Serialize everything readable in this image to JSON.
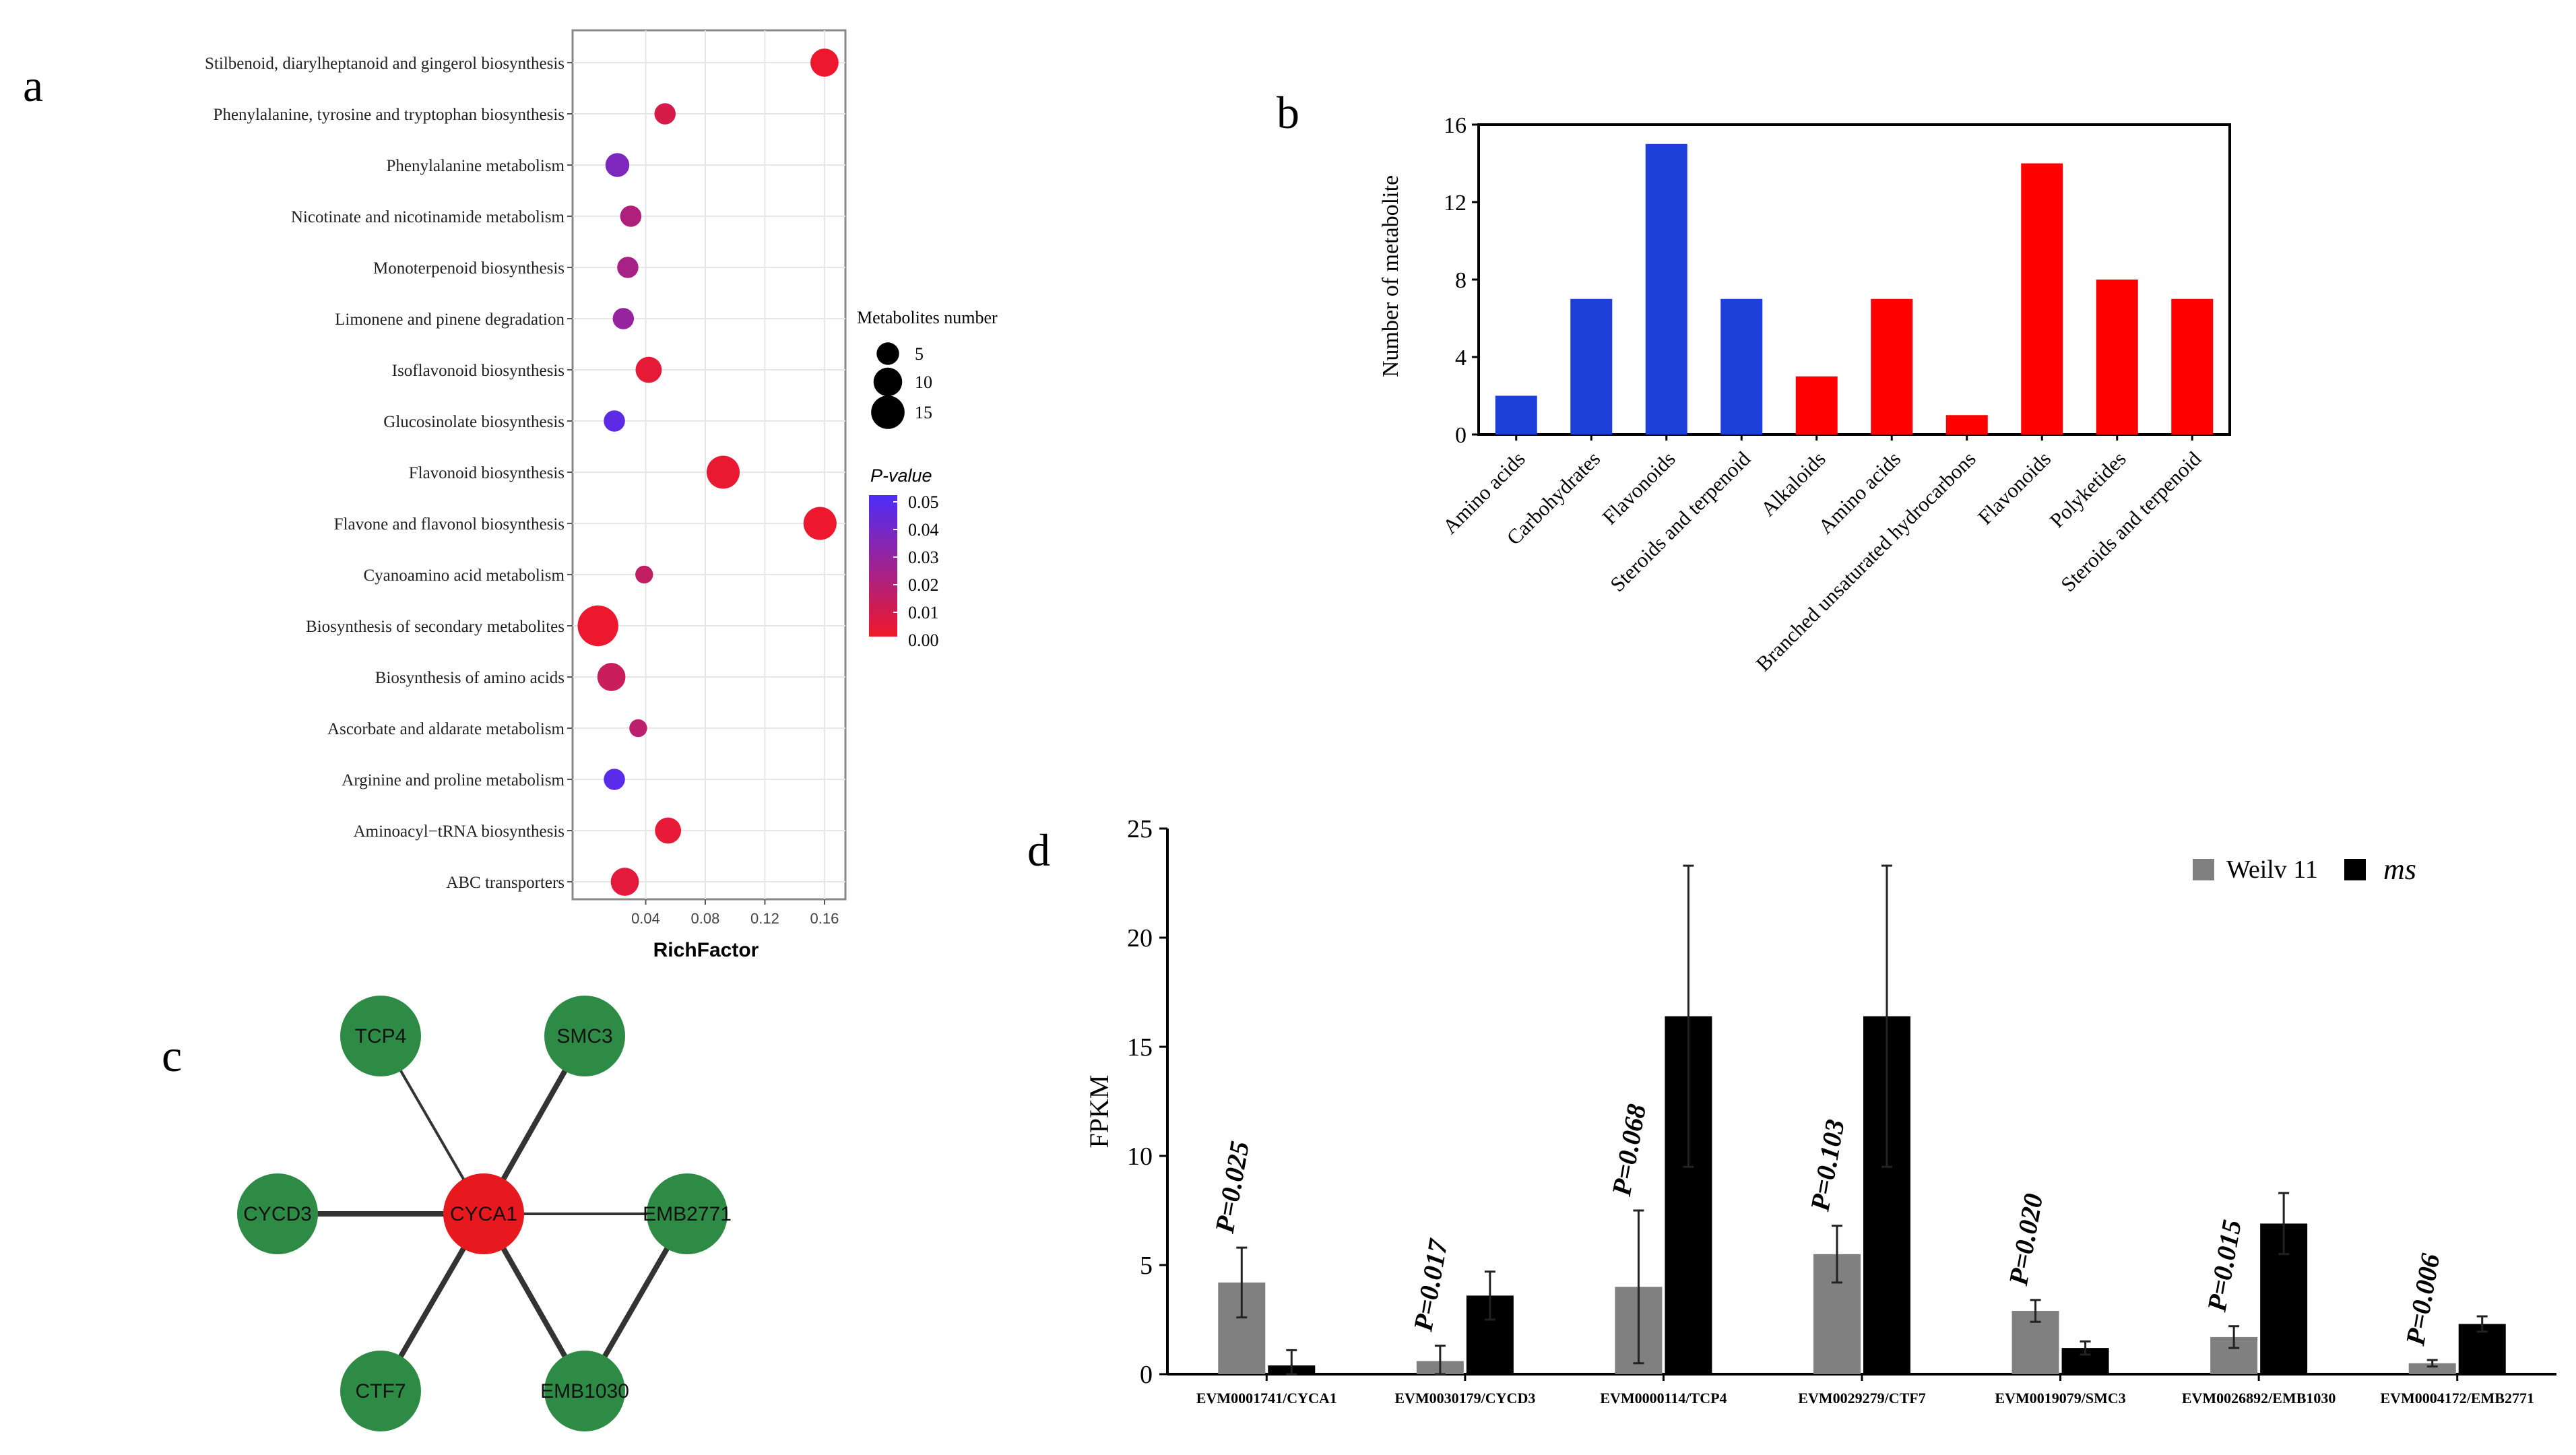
{
  "panels": {
    "a": "a",
    "b": "b",
    "c": "c",
    "d": "d"
  },
  "chart_data": [
    {
      "id": "a",
      "type": "scatter",
      "xlabel": "RichFactor",
      "xticks": [
        0.04,
        0.08,
        0.12,
        0.16
      ],
      "xticks_labels": [
        "0.04",
        "0.08",
        "0.12",
        "0.16"
      ],
      "xlim": [
        0.0,
        0.165
      ],
      "grid": true,
      "categories": [
        "Stilbenoid, diarylheptanoid and gingerol biosynthesis",
        "Phenylalanine, tyrosine and tryptophan biosynthesis",
        "Phenylalanine metabolism",
        "Nicotinate and nicotinamide metabolism",
        "Monoterpenoid biosynthesis",
        "Limonene and pinene degradation",
        "Isoflavonoid biosynthesis",
        "Glucosinolate biosynthesis",
        "Flavonoid biosynthesis",
        "Flavone and flavonol biosynthesis",
        "Cyanoamino acid metabolism",
        "Biosynthesis of secondary metabolites",
        "Biosynthesis of amino acids",
        "Ascorbate and aldarate metabolism",
        "Arginine and proline metabolism",
        "Aminoacyl−tRNA biosynthesis",
        "ABC transporters"
      ],
      "points": [
        {
          "x": 0.16,
          "count": 5,
          "p": 0.001
        },
        {
          "x": 0.053,
          "count": 2,
          "p": 0.008
        },
        {
          "x": 0.021,
          "count": 3,
          "p": 0.035
        },
        {
          "x": 0.03,
          "count": 2,
          "p": 0.02
        },
        {
          "x": 0.028,
          "count": 2,
          "p": 0.022
        },
        {
          "x": 0.025,
          "count": 2,
          "p": 0.028
        },
        {
          "x": 0.042,
          "count": 4,
          "p": 0.003
        },
        {
          "x": 0.019,
          "count": 2,
          "p": 0.045
        },
        {
          "x": 0.092,
          "count": 8,
          "p": 0.002
        },
        {
          "x": 0.157,
          "count": 8,
          "p": 0.001
        },
        {
          "x": 0.039,
          "count": 1,
          "p": 0.014
        },
        {
          "x": 0.008,
          "count": 14,
          "p": 0.001
        },
        {
          "x": 0.017,
          "count": 5,
          "p": 0.012
        },
        {
          "x": 0.035,
          "count": 1,
          "p": 0.016
        },
        {
          "x": 0.019,
          "count": 2,
          "p": 0.046
        },
        {
          "x": 0.055,
          "count": 4,
          "p": 0.003
        },
        {
          "x": 0.026,
          "count": 5,
          "p": 0.004
        }
      ],
      "size_legend": {
        "title": "Metabolites number",
        "values": [
          5,
          10,
          15
        ],
        "labels": [
          "5",
          "10",
          "15"
        ]
      },
      "color_legend": {
        "title": "P-value",
        "min": 0.0,
        "max": 0.05,
        "ticks": [
          "0.05",
          "0.04",
          "0.03",
          "0.02",
          "0.01",
          "0.00"
        ],
        "low_color": "#f0182a",
        "high_color": "#4d2dfa"
      }
    },
    {
      "id": "b",
      "type": "bar",
      "ylabel": "Number of metabolite",
      "ylim": [
        0,
        16
      ],
      "yticks": [
        "0",
        "4",
        "8",
        "12",
        "16"
      ],
      "categories": [
        "Amino acids",
        "Carbohydrates",
        "Flavonoids",
        "Steroids and terpenoid",
        "Alkaloids",
        "Amino acids",
        "Branched unsaturated hydrocarbons",
        "Flavonoids",
        "Polyketides",
        "Steroids and terpenoid"
      ],
      "values": [
        2,
        7,
        15,
        7,
        3,
        7,
        1,
        14,
        8,
        7
      ],
      "bar_colors": [
        "#1f3fdb",
        "#1f3fdb",
        "#1f3fdb",
        "#1f3fdb",
        "#ff0000",
        "#ff0000",
        "#ff0000",
        "#ff0000",
        "#ff0000",
        "#ff0000"
      ]
    },
    {
      "id": "c",
      "type": "network",
      "nodes": [
        {
          "id": "CYCA1",
          "label": "CYCA1",
          "color": "#e8191e"
        },
        {
          "id": "TCP4",
          "label": "TCP4",
          "color": "#2e8b46"
        },
        {
          "id": "SMC3",
          "label": "SMC3",
          "color": "#2e8b46"
        },
        {
          "id": "CYCD3",
          "label": "CYCD3",
          "color": "#2e8b46"
        },
        {
          "id": "EMB2771",
          "label": "EMB2771",
          "color": "#2e8b46"
        },
        {
          "id": "CTF7",
          "label": "CTF7",
          "color": "#2e8b46"
        },
        {
          "id": "EMB1030",
          "label": "EMB1030",
          "color": "#2e8b46"
        }
      ],
      "edges": [
        {
          "source": "CYCA1",
          "target": "TCP4",
          "weight": 1
        },
        {
          "source": "CYCA1",
          "target": "SMC3",
          "weight": 2
        },
        {
          "source": "CYCA1",
          "target": "CYCD3",
          "weight": 2
        },
        {
          "source": "CYCA1",
          "target": "EMB2771",
          "weight": 1
        },
        {
          "source": "CYCA1",
          "target": "CTF7",
          "weight": 2
        },
        {
          "source": "CYCA1",
          "target": "EMB1030",
          "weight": 2
        },
        {
          "source": "EMB1030",
          "target": "EMB2771",
          "weight": 2
        }
      ]
    },
    {
      "id": "d",
      "type": "bar",
      "ylabel": "FPKM",
      "ylim": [
        0,
        25
      ],
      "yticks": [
        "0",
        "5",
        "10",
        "15",
        "20",
        "25"
      ],
      "categories": [
        "EVM0001741/CYCA1",
        "EVM0030179/CYCD3",
        "EVM0000114/TCP4",
        "EVM0029279/CTF7",
        "EVM0019079/SMC3",
        "EVM0026892/EMB1030",
        "EVM0004172/EMB2771"
      ],
      "series": [
        {
          "name": "Weilv 11",
          "color": "#808080",
          "values": [
            4.2,
            0.6,
            4.0,
            5.5,
            2.9,
            1.7,
            0.5
          ],
          "errors": [
            1.6,
            0.7,
            3.5,
            1.3,
            0.5,
            0.5,
            0.15
          ]
        },
        {
          "name": "ms",
          "color": "#000000",
          "values": [
            0.4,
            3.6,
            16.4,
            16.4,
            1.2,
            6.9,
            2.3
          ],
          "errors": [
            0.7,
            1.1,
            6.9,
            6.9,
            0.3,
            1.4,
            0.35
          ]
        }
      ],
      "annotations": [
        "P=0.025",
        "P=0.017",
        "P=0.068",
        "P=0.103",
        "P=0.020",
        "P=0.015",
        "P=0.006"
      ]
    }
  ]
}
